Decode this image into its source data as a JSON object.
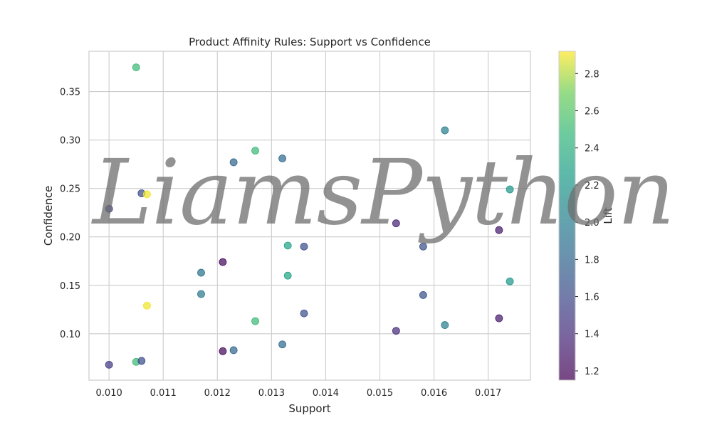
{
  "chart_data": {
    "type": "scatter",
    "title": "Product Affinity Rules: Support vs Confidence",
    "xlabel": "Support",
    "ylabel": "Confidence",
    "xlim": [
      0.00963,
      0.01778
    ],
    "ylim": [
      0.0521,
      0.3916
    ],
    "xticks": [
      0.01,
      0.011,
      0.012,
      0.013,
      0.014,
      0.015,
      0.016,
      0.017
    ],
    "xtick_labels": [
      "0.010",
      "0.011",
      "0.012",
      "0.013",
      "0.014",
      "0.015",
      "0.016",
      "0.017"
    ],
    "yticks": [
      0.1,
      0.15,
      0.2,
      0.25,
      0.3,
      0.35
    ],
    "ytick_labels": [
      "0.10",
      "0.15",
      "0.20",
      "0.25",
      "0.30",
      "0.35"
    ],
    "grid": true,
    "colormap": "viridis",
    "colorbar": {
      "label": "Lift",
      "range": [
        1.15,
        2.92
      ],
      "ticks": [
        1.2,
        1.4,
        1.6,
        1.8,
        2.0,
        2.2,
        2.4,
        2.6,
        2.8
      ],
      "tick_labels": [
        "1.2",
        "1.4",
        "1.6",
        "1.8",
        "2.0",
        "2.2",
        "2.4",
        "2.6",
        "2.8"
      ]
    },
    "points": [
      {
        "x": 0.0105,
        "y": 0.375,
        "lift": 2.5
      },
      {
        "x": 0.01,
        "y": 0.229,
        "lift": 1.55
      },
      {
        "x": 0.01,
        "y": 0.068,
        "lift": 1.5
      },
      {
        "x": 0.0106,
        "y": 0.245,
        "lift": 1.62
      },
      {
        "x": 0.0107,
        "y": 0.244,
        "lift": 2.9
      },
      {
        "x": 0.0107,
        "y": 0.129,
        "lift": 2.9
      },
      {
        "x": 0.0105,
        "y": 0.071,
        "lift": 2.5
      },
      {
        "x": 0.0106,
        "y": 0.072,
        "lift": 1.62
      },
      {
        "x": 0.0117,
        "y": 0.163,
        "lift": 1.9
      },
      {
        "x": 0.0117,
        "y": 0.141,
        "lift": 1.95
      },
      {
        "x": 0.0121,
        "y": 0.174,
        "lift": 1.2
      },
      {
        "x": 0.0121,
        "y": 0.082,
        "lift": 1.2
      },
      {
        "x": 0.0123,
        "y": 0.277,
        "lift": 1.8
      },
      {
        "x": 0.0123,
        "y": 0.083,
        "lift": 1.8
      },
      {
        "x": 0.0127,
        "y": 0.289,
        "lift": 2.5
      },
      {
        "x": 0.0127,
        "y": 0.113,
        "lift": 2.5
      },
      {
        "x": 0.0132,
        "y": 0.281,
        "lift": 1.82
      },
      {
        "x": 0.0132,
        "y": 0.089,
        "lift": 1.82
      },
      {
        "x": 0.0133,
        "y": 0.191,
        "lift": 2.3
      },
      {
        "x": 0.0133,
        "y": 0.16,
        "lift": 2.3
      },
      {
        "x": 0.0136,
        "y": 0.19,
        "lift": 1.65
      },
      {
        "x": 0.0136,
        "y": 0.121,
        "lift": 1.65
      },
      {
        "x": 0.0153,
        "y": 0.214,
        "lift": 1.35
      },
      {
        "x": 0.0153,
        "y": 0.103,
        "lift": 1.4
      },
      {
        "x": 0.0158,
        "y": 0.19,
        "lift": 1.65
      },
      {
        "x": 0.0158,
        "y": 0.14,
        "lift": 1.65
      },
      {
        "x": 0.0162,
        "y": 0.31,
        "lift": 2.0
      },
      {
        "x": 0.0162,
        "y": 0.109,
        "lift": 2.0
      },
      {
        "x": 0.0172,
        "y": 0.207,
        "lift": 1.3
      },
      {
        "x": 0.0172,
        "y": 0.116,
        "lift": 1.3
      },
      {
        "x": 0.0174,
        "y": 0.249,
        "lift": 2.2
      },
      {
        "x": 0.0174,
        "y": 0.154,
        "lift": 2.2
      }
    ]
  },
  "watermark": "LiamsPython"
}
